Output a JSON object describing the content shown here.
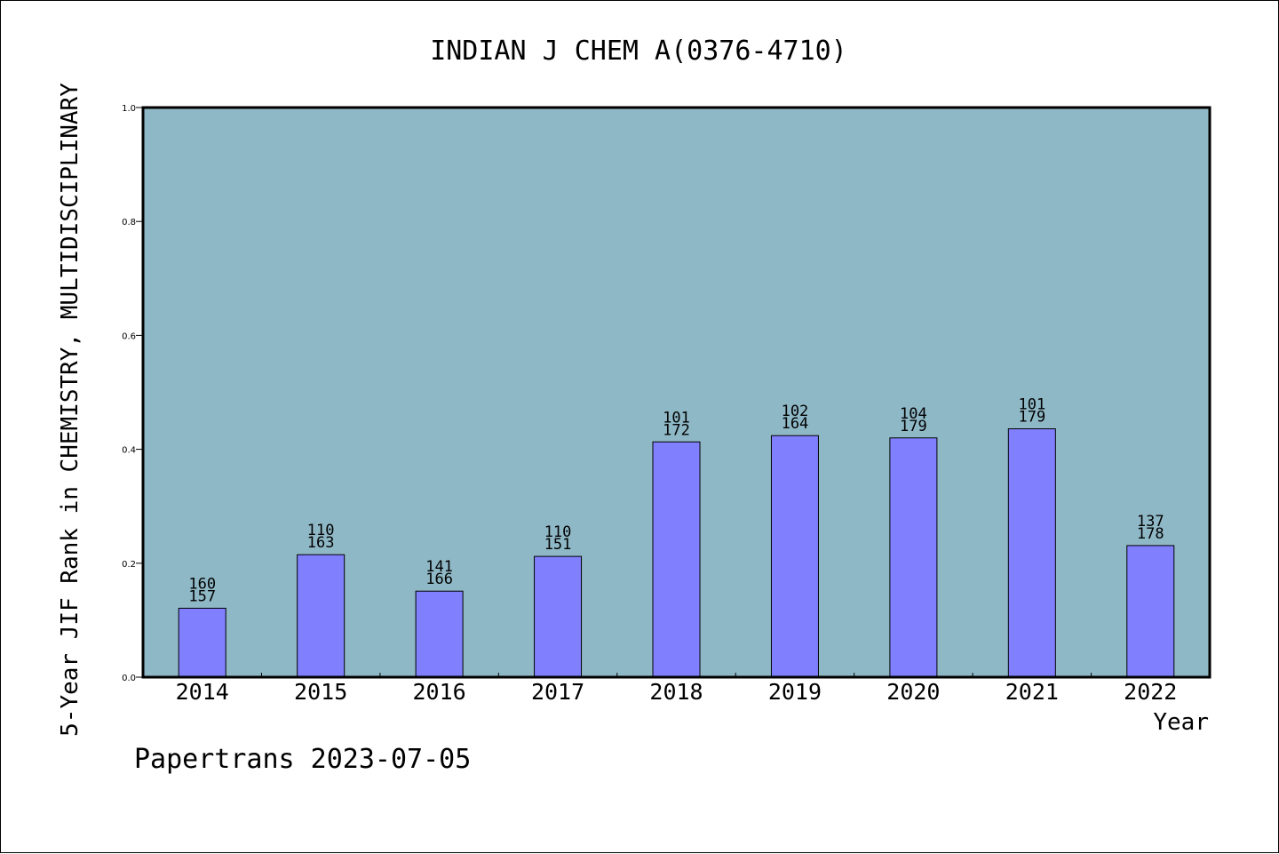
{
  "chart_data": {
    "type": "bar",
    "title": "INDIAN J CHEM A(0376-4710)",
    "xlabel": "Year",
    "ylabel": "5-Year JIF Rank in CHEMISTRY, MULTIDISCIPLINARY",
    "ylim": [
      0,
      1.0
    ],
    "y_ticks": [
      "0.0",
      "0.2",
      "0.4",
      "0.6",
      "0.8",
      "1.0"
    ],
    "categories": [
      "2014",
      "2015",
      "2016",
      "2017",
      "2018",
      "2019",
      "2020",
      "2021",
      "2022"
    ],
    "values": [
      0.121,
      0.215,
      0.151,
      0.212,
      0.413,
      0.424,
      0.42,
      0.436,
      0.231
    ],
    "labels_top": [
      "160",
      "110",
      "141",
      "110",
      "101",
      "102",
      "104",
      "101",
      "137"
    ],
    "labels_bottom": [
      "157",
      "163",
      "166",
      "151",
      "172",
      "164",
      "179",
      "179",
      "178"
    ],
    "grid": false,
    "colors": {
      "plot_background": "#8fb8c6",
      "bar_fill": "#8080ff",
      "bar_stroke": "#000000"
    }
  },
  "footer": {
    "text": "Papertrans 2023-07-05"
  }
}
